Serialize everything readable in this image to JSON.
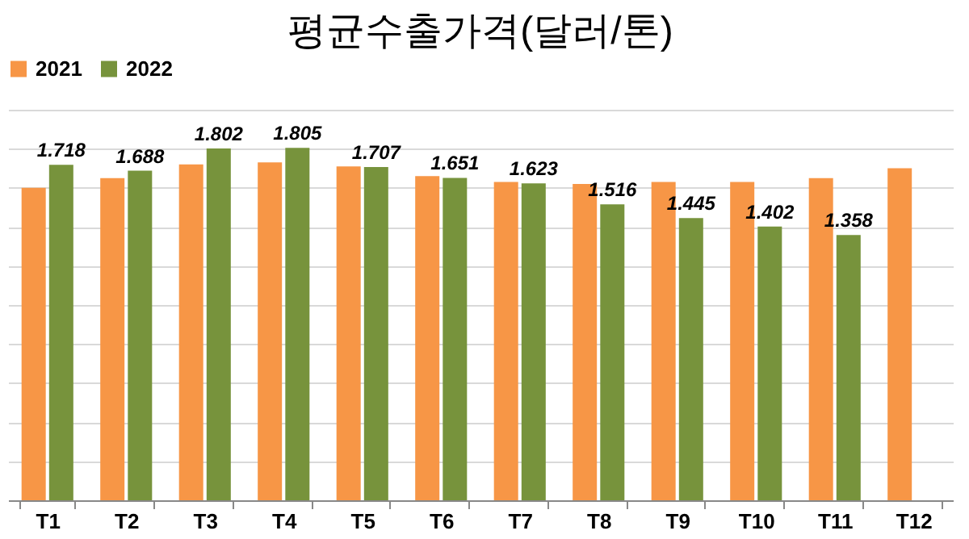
{
  "chart_data": {
    "type": "bar",
    "title": "평균수출가격(달러/톤)",
    "tick_labels": "x",
    "grid": "y",
    "legend": "top",
    "categories": [
      "T1",
      "T2",
      "T3",
      "T4",
      "T5",
      "T6",
      "T7",
      "T8",
      "T9",
      "T10",
      "T11",
      "T12"
    ],
    "series": [
      {
        "name": "2021",
        "color": "#f79646",
        "values": [
          1.6,
          1.65,
          1.72,
          1.73,
          1.71,
          1.66,
          1.63,
          1.62,
          1.63,
          1.63,
          1.65,
          1.7
        ]
      },
      {
        "name": "2022",
        "color": "#77933c",
        "values": [
          1.718,
          1.688,
          1.802,
          1.805,
          1.707,
          1.651,
          1.623,
          1.516,
          1.445,
          1.402,
          1.358,
          null
        ],
        "value_labels": [
          "1.718",
          "1.688",
          "1.802",
          "1.805",
          "1.707",
          "1.651",
          "1.623",
          "1.516",
          "1.445",
          "1.402",
          "1.358",
          null
        ]
      }
    ]
  }
}
